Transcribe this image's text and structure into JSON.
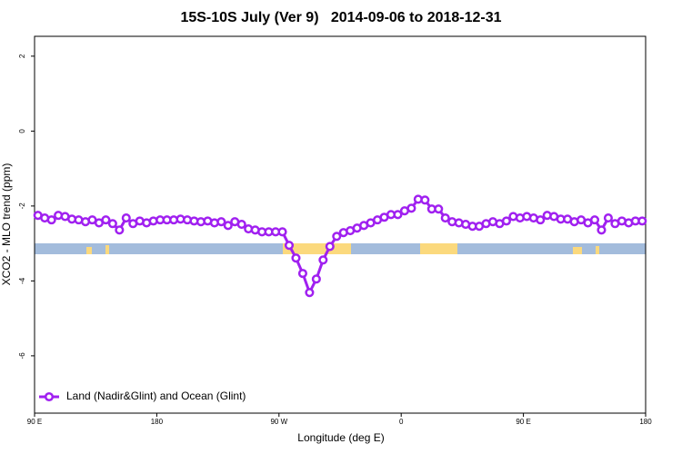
{
  "chart_data": {
    "type": "line",
    "title": "15S-10S July (Ver 9)   2014-09-06 to 2018-12-31",
    "x_label": "Longitude (deg E)",
    "y_label": "XCO2 - MLO trend (ppm)",
    "xlim": [
      90,
      540
    ],
    "xticks": [
      {
        "value": 90,
        "label": "90 E"
      },
      {
        "value": 180,
        "label": "180"
      },
      {
        "value": 270,
        "label": "90 W"
      },
      {
        "value": 360,
        "label": "0"
      },
      {
        "value": 450,
        "label": "90 E"
      },
      {
        "value": 540,
        "label": "180"
      }
    ],
    "ylim": [
      -7.53,
      2.53
    ],
    "yticks": [
      -6,
      -4,
      -2,
      0,
      2
    ],
    "legend": "bottom-left",
    "x": [
      92.5,
      97.5,
      102.5,
      107.5,
      112.5,
      117.5,
      122.5,
      127.5,
      132.5,
      137.5,
      142.5,
      147.5,
      152.5,
      157.5,
      162.5,
      167.5,
      172.5,
      177.5,
      182.5,
      187.5,
      192.5,
      197.5,
      202.5,
      207.5,
      212.5,
      217.5,
      222.5,
      227.5,
      232.5,
      237.5,
      242.5,
      247.5,
      252.5,
      257.5,
      262.5,
      267.5,
      272.5,
      277.5,
      282.5,
      287.5,
      292.5,
      297.5,
      302.5,
      307.5,
      312.5,
      317.5,
      322.5,
      327.5,
      332.5,
      337.5,
      342.5,
      347.5,
      352.5,
      357.5,
      362.5,
      367.5,
      372.5,
      377.5,
      382.5,
      387.5,
      392.5,
      397.5,
      402.5,
      407.5,
      412.5,
      417.5,
      422.5,
      427.5,
      432.5,
      437.5,
      442.5,
      447.5,
      452.5,
      457.5,
      462.5,
      467.5,
      472.5,
      477.5,
      482.5,
      487.5,
      492.5,
      497.5,
      502.5,
      507.5,
      512.5,
      517.5,
      522.5,
      527.5,
      532.5,
      537.5
    ],
    "series": [
      {
        "name": "Land (Nadir&Glint) and Ocean (Glint)",
        "color": "#a020f0",
        "values": [
          -2.25,
          -2.32,
          -2.37,
          -2.25,
          -2.28,
          -2.35,
          -2.37,
          -2.42,
          -2.37,
          -2.45,
          -2.37,
          -2.47,
          -2.64,
          -2.32,
          -2.47,
          -2.4,
          -2.45,
          -2.4,
          -2.37,
          -2.37,
          -2.37,
          -2.35,
          -2.37,
          -2.4,
          -2.42,
          -2.4,
          -2.45,
          -2.42,
          -2.52,
          -2.42,
          -2.49,
          -2.61,
          -2.64,
          -2.69,
          -2.69,
          -2.69,
          -2.69,
          -3.05,
          -3.39,
          -3.8,
          -4.31,
          -3.95,
          -3.44,
          -3.08,
          -2.81,
          -2.71,
          -2.66,
          -2.59,
          -2.52,
          -2.45,
          -2.37,
          -2.3,
          -2.23,
          -2.23,
          -2.13,
          -2.06,
          -1.82,
          -1.84,
          -2.08,
          -2.08,
          -2.32,
          -2.42,
          -2.45,
          -2.49,
          -2.54,
          -2.54,
          -2.47,
          -2.42,
          -2.47,
          -2.4,
          -2.28,
          -2.32,
          -2.28,
          -2.32,
          -2.37,
          -2.25,
          -2.28,
          -2.35,
          -2.35,
          -2.42,
          -2.37,
          -2.45,
          -2.37,
          -2.64,
          -2.32,
          -2.47,
          -2.4,
          -2.45,
          -2.4,
          -2.4
        ]
      }
    ]
  }
}
